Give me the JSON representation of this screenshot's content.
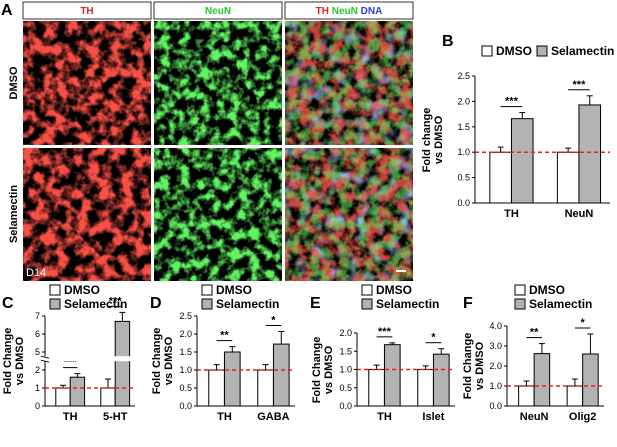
{
  "figure": {
    "panel_a": {
      "letter": "A",
      "column_headers": [
        {
          "parts": [
            {
              "text": "TH",
              "color": "#e8231f"
            }
          ]
        },
        {
          "parts": [
            {
              "text": "NeuN",
              "color": "#22c722"
            }
          ]
        },
        {
          "parts": [
            {
              "text": "TH",
              "color": "#e8231f"
            },
            {
              "text": "NeuN",
              "color": "#22c722"
            },
            {
              "text": "DNA",
              "color": "#2b3bd6"
            }
          ]
        }
      ],
      "row_labels": [
        "DMSO",
        "Selamectin"
      ],
      "day_label": "D14"
    },
    "legend": {
      "dmso": "DMSO",
      "selamectin": "Selamectin"
    },
    "colors": {
      "dmso_fill": "#ffffff",
      "selamectin_fill": "#b3b3b3",
      "reference_line": "#e8231f"
    }
  },
  "chart_data": [
    {
      "panel": "B",
      "type": "bar",
      "ylabel": "Fold change\nvs DMSO",
      "categories": [
        "TH",
        "NeuN"
      ],
      "series": [
        {
          "name": "DMSO",
          "values": [
            1.0,
            1.0
          ],
          "errors": [
            0.1,
            0.08
          ]
        },
        {
          "name": "Selamectin",
          "values": [
            1.66,
            1.93
          ],
          "errors": [
            0.12,
            0.18
          ]
        }
      ],
      "significance": [
        "***",
        "***"
      ],
      "yticks": [
        "0.0",
        "0.5",
        "1.0",
        "1.5",
        "2.0",
        "2.5"
      ],
      "ylim": [
        0,
        2.5
      ],
      "reference_line": 1.0
    },
    {
      "panel": "C",
      "type": "bar",
      "ylabel": "Fold Change\nvs DMSO",
      "categories": [
        "TH",
        "5-HT"
      ],
      "series": [
        {
          "name": "DMSO",
          "values": [
            1.0,
            1.0
          ],
          "errors": [
            0.15,
            0.5
          ]
        },
        {
          "name": "Selamectin",
          "values": [
            1.6,
            6.7
          ],
          "errors": [
            0.2,
            0.5
          ]
        }
      ],
      "significance": [
        "***",
        "***"
      ],
      "yticks": [
        "0",
        "1",
        "2",
        "5",
        "6",
        "7"
      ],
      "ylim": [
        0,
        7
      ],
      "axis_break": [
        2.6,
        4.6
      ],
      "reference_line": 1.0
    },
    {
      "panel": "D",
      "type": "bar",
      "ylabel": "Fold Change\nvs DMSO",
      "categories": [
        "TH",
        "GABA"
      ],
      "series": [
        {
          "name": "DMSO",
          "values": [
            1.0,
            1.0
          ],
          "errors": [
            0.15,
            0.15
          ]
        },
        {
          "name": "Selamectin",
          "values": [
            1.5,
            1.72
          ],
          "errors": [
            0.15,
            0.35
          ]
        }
      ],
      "significance": [
        "**",
        "*"
      ],
      "yticks": [
        "0.0",
        "0.5",
        "1.0",
        "1.5",
        "2.0",
        "2.5"
      ],
      "ylim": [
        0,
        2.5
      ],
      "reference_line": 1.0
    },
    {
      "panel": "E",
      "type": "bar",
      "ylabel": "Fold Change\nvs DMSO",
      "categories": [
        "TH",
        "Islet"
      ],
      "series": [
        {
          "name": "DMSO",
          "values": [
            1.0,
            1.0
          ],
          "errors": [
            0.12,
            0.1
          ]
        },
        {
          "name": "Selamectin",
          "values": [
            1.68,
            1.42
          ],
          "errors": [
            0.05,
            0.15
          ]
        }
      ],
      "significance": [
        "***",
        "*"
      ],
      "yticks": [
        "0.0",
        "0.5",
        "1.0",
        "1.5",
        "2.0"
      ],
      "ylim": [
        0,
        2.0
      ],
      "reference_line": 1.0
    },
    {
      "panel": "F",
      "type": "bar",
      "ylabel": "Fold Change\nvs DMSO",
      "categories": [
        "NeuN",
        "Olig2"
      ],
      "series": [
        {
          "name": "DMSO",
          "values": [
            1.0,
            1.0
          ],
          "errors": [
            0.25,
            0.35
          ]
        },
        {
          "name": "Selamectin",
          "values": [
            2.62,
            2.6
          ],
          "errors": [
            0.5,
            1.0
          ]
        }
      ],
      "significance": [
        "**",
        "*"
      ],
      "yticks": [
        "0.0",
        "1.0",
        "2.0",
        "3.0",
        "4.0"
      ],
      "ylim": [
        0,
        4.0
      ],
      "reference_line": 1.0
    }
  ]
}
